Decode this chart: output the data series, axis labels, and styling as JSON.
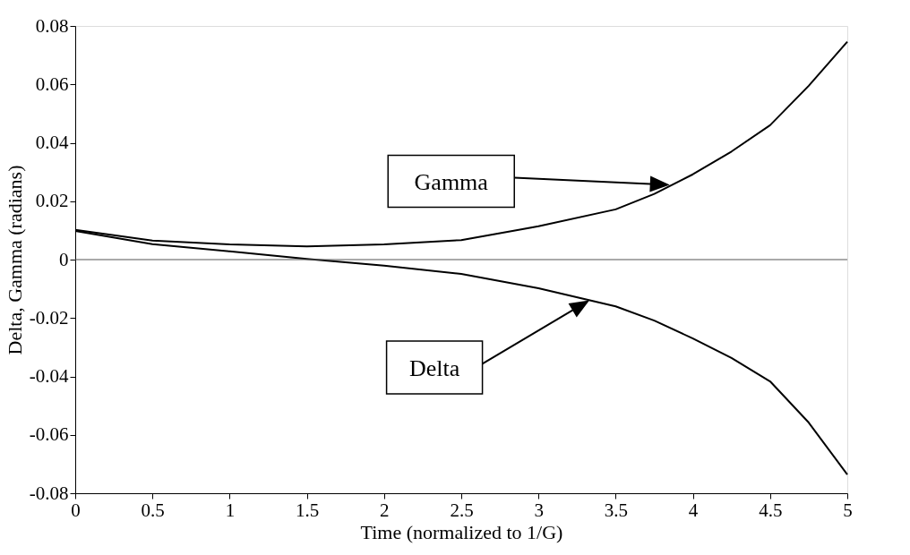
{
  "chart_data": {
    "type": "line",
    "xlabel": "Time (normalized to 1/G)",
    "ylabel": "Delta, Gamma (radians)",
    "xlim": [
      0,
      5
    ],
    "xticks": [
      0,
      0.5,
      1,
      1.5,
      2,
      2.5,
      3,
      3.5,
      4,
      4.5,
      5
    ],
    "ylim": [
      -0.08,
      0.08
    ],
    "yticks": [
      -0.08,
      -0.06,
      -0.04,
      -0.02,
      0,
      0.02,
      0.04,
      0.06,
      0.08
    ],
    "grid": false,
    "marker": "none",
    "line_style": "solid",
    "x": [
      0,
      0.5,
      1,
      1.5,
      2,
      2.5,
      3,
      3.5,
      3.75,
      4,
      4.25,
      4.5,
      4.75,
      5
    ],
    "series": [
      {
        "color": "#000000",
        "values": [
          0.0102,
          0.0065,
          0.0052,
          0.0045,
          0.0052,
          0.0067,
          0.0114,
          0.0172,
          0.0225,
          0.0292,
          0.037,
          0.046,
          0.0595,
          0.0746
        ]
      },
      {
        "color": "#000000",
        "values": [
          0.0098,
          0.0053,
          0.0028,
          0.0002,
          -0.0021,
          -0.0049,
          -0.0098,
          -0.016,
          -0.0209,
          -0.027,
          -0.0337,
          -0.0417,
          -0.0558,
          -0.0736
        ]
      }
    ],
    "ref_lines": [
      {
        "axis": "y",
        "value": 0,
        "color": "#555555"
      }
    ],
    "annotations": [
      "Gamma",
      "Delta"
    ]
  }
}
